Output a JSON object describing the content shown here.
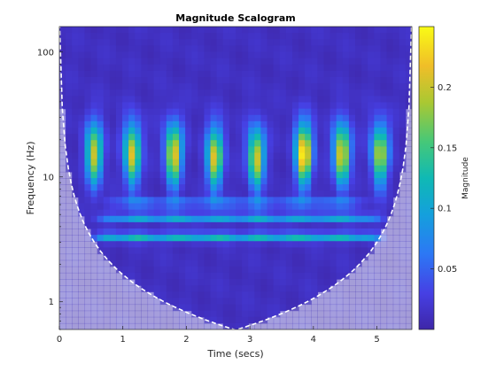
{
  "chart_data": {
    "type": "heatmap",
    "title": "Magnitude Scalogram",
    "xlabel": "Time (secs)",
    "ylabel": "Frequency (Hz)",
    "xlim": [
      0,
      5.55
    ],
    "ylim": [
      0.6,
      160
    ],
    "yscale": "log",
    "x_ticks": [
      0,
      1,
      2,
      3,
      4,
      5
    ],
    "x_tick_labels": [
      "0",
      "1",
      "2",
      "3",
      "4",
      "5"
    ],
    "y_ticks": [
      1,
      10,
      100
    ],
    "y_tick_labels": [
      "1",
      "10",
      "100"
    ],
    "colorbar": {
      "label": "Magnitude",
      "colormap": "parula",
      "clim": [
        0,
        0.25
      ],
      "ticks": [
        0.05,
        0.1,
        0.15,
        0.2
      ],
      "tick_labels": [
        "0.05",
        "0.1",
        "0.15",
        "0.2"
      ]
    },
    "bursts": [
      {
        "t": 0.55,
        "f": 15,
        "mag": 0.19
      },
      {
        "t": 1.15,
        "f": 15,
        "mag": 0.2
      },
      {
        "t": 1.8,
        "f": 15,
        "mag": 0.21
      },
      {
        "t": 2.45,
        "f": 14,
        "mag": 0.2
      },
      {
        "t": 3.1,
        "f": 14,
        "mag": 0.2
      },
      {
        "t": 3.85,
        "f": 15,
        "mag": 0.24
      },
      {
        "t": 4.45,
        "f": 15,
        "mag": 0.21
      },
      {
        "t": 5.05,
        "f": 15,
        "mag": 0.19
      }
    ],
    "bands": [
      {
        "f": 3.3,
        "mag": 0.12,
        "t_start": 0.4,
        "t_end": 5.2
      },
      {
        "f": 4.7,
        "mag": 0.1,
        "t_start": 0.5,
        "t_end": 5.2
      },
      {
        "f": 6.2,
        "mag": 0.07,
        "t_start": 0.6,
        "t_end": 5.0
      }
    ],
    "cone_of_influence": "dashed white boundary; outside region shaded",
    "grid": false,
    "colors": {
      "background_low": "#3e26a8",
      "mid": "#1fb8a4",
      "high": "#f9fb15",
      "coi_line": "#ffffff"
    }
  }
}
